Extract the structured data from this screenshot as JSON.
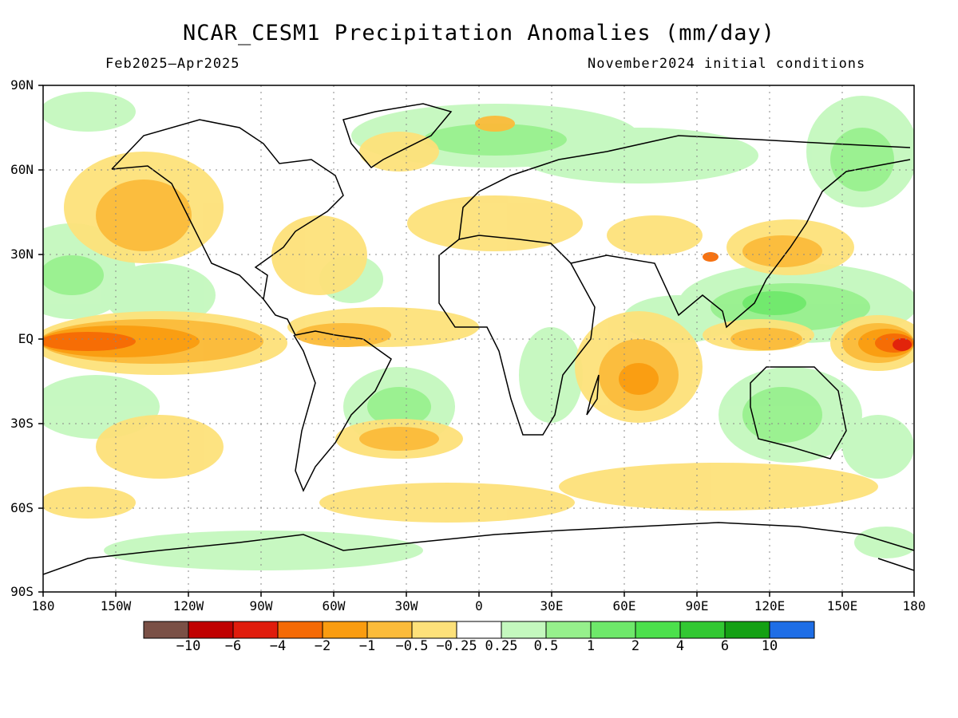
{
  "title": "NCAR_CESM1 Precipitation Anomalies (mm/day)",
  "period": "Feb2025–Apr2025",
  "init": "November2024 initial conditions",
  "lat_labels": [
    "90N",
    "60N",
    "30N",
    "EQ",
    "30S",
    "60S",
    "90S"
  ],
  "lon_labels": [
    "180",
    "150W",
    "120W",
    "90W",
    "60W",
    "30W",
    "0",
    "30E",
    "60E",
    "90E",
    "120E",
    "150E",
    "180"
  ],
  "colorbar": {
    "labels": [
      "−10",
      "−6",
      "−4",
      "−2",
      "−1",
      "−0.5",
      "−0.25",
      "0.25",
      "0.5",
      "1",
      "2",
      "4",
      "6",
      "10"
    ],
    "colors": [
      "#7a5046",
      "#c00000",
      "#e01c0c",
      "#f56a05",
      "#fa9c10",
      "#fbbb3a",
      "#fde17a",
      "#ffffff",
      "#c4f8be",
      "#96f08c",
      "#6ee86a",
      "#4ce04c",
      "#32c832",
      "#14a014",
      "#1e6ee6"
    ]
  }
}
